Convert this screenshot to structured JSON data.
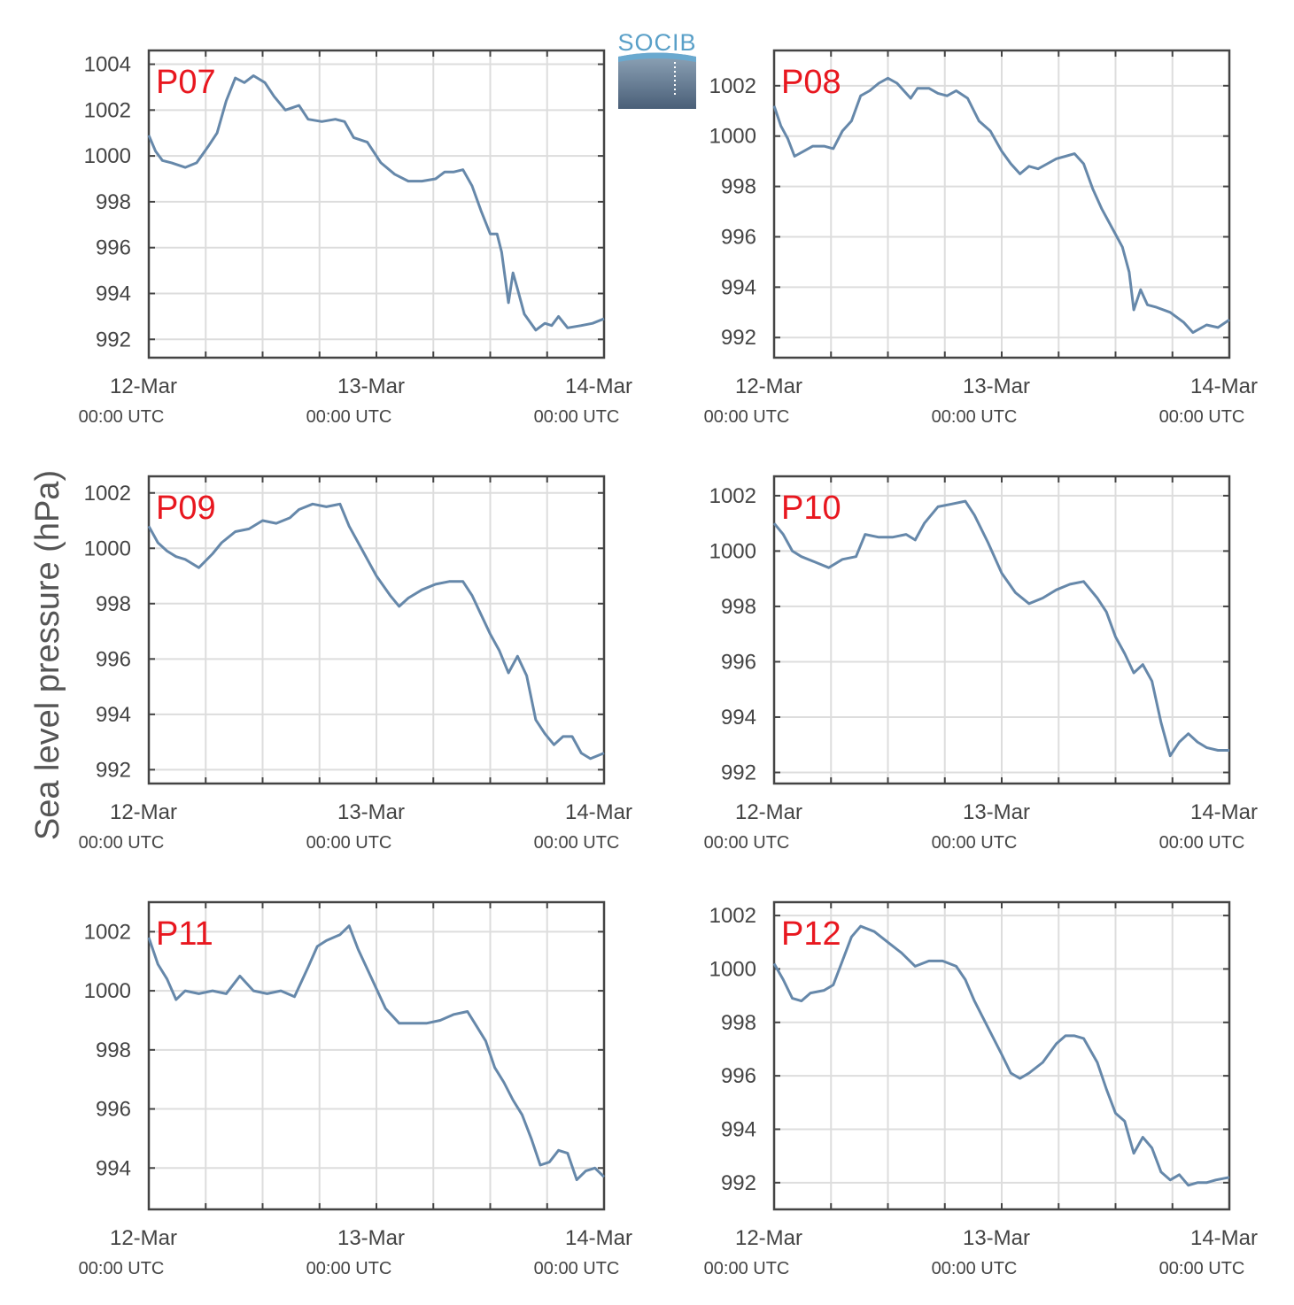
{
  "logo": {
    "text": "SOCIB"
  },
  "ylabel": "Sea level pressure (hPa)",
  "line_color": "#6688aa",
  "label_color": "#e8171f",
  "chart_data": [
    {
      "type": "line",
      "label": "P07",
      "xlim": [
        0,
        2
      ],
      "ylim": [
        991.2,
        1004.6
      ],
      "yticks": [
        992,
        994,
        996,
        998,
        1000,
        1002,
        1004
      ],
      "x_ticks": [
        {
          "top": "12-Mar",
          "bottom": "00:00 UTC"
        },
        {
          "top": "13-Mar",
          "bottom": "00:00 UTC"
        },
        {
          "top": "14-Mar",
          "bottom": "00:00 UTC"
        }
      ],
      "points": [
        [
          0,
          1000.9
        ],
        [
          0.03,
          1000.2
        ],
        [
          0.06,
          999.8
        ],
        [
          0.1,
          999.7
        ],
        [
          0.16,
          999.5
        ],
        [
          0.21,
          999.7
        ],
        [
          0.26,
          1000.4
        ],
        [
          0.3,
          1001.0
        ],
        [
          0.34,
          1002.4
        ],
        [
          0.38,
          1003.4
        ],
        [
          0.42,
          1003.2
        ],
        [
          0.46,
          1003.5
        ],
        [
          0.51,
          1003.2
        ],
        [
          0.55,
          1002.6
        ],
        [
          0.6,
          1002.0
        ],
        [
          0.66,
          1002.2
        ],
        [
          0.7,
          1001.6
        ],
        [
          0.76,
          1001.5
        ],
        [
          0.82,
          1001.6
        ],
        [
          0.86,
          1001.5
        ],
        [
          0.9,
          1000.8
        ],
        [
          0.96,
          1000.6
        ],
        [
          1.02,
          999.7
        ],
        [
          1.08,
          999.2
        ],
        [
          1.14,
          998.9
        ],
        [
          1.2,
          998.9
        ],
        [
          1.26,
          999.0
        ],
        [
          1.3,
          999.3
        ],
        [
          1.34,
          999.3
        ],
        [
          1.38,
          999.4
        ],
        [
          1.42,
          998.7
        ],
        [
          1.46,
          997.6
        ],
        [
          1.5,
          996.6
        ],
        [
          1.53,
          996.6
        ],
        [
          1.55,
          995.8
        ],
        [
          1.58,
          993.6
        ],
        [
          1.6,
          994.9
        ],
        [
          1.62,
          994.2
        ],
        [
          1.65,
          993.1
        ],
        [
          1.7,
          992.4
        ],
        [
          1.74,
          992.7
        ],
        [
          1.77,
          992.6
        ],
        [
          1.8,
          993.0
        ],
        [
          1.84,
          992.5
        ],
        [
          1.9,
          992.6
        ],
        [
          1.95,
          992.7
        ],
        [
          2,
          992.9
        ]
      ]
    },
    {
      "type": "line",
      "label": "P08",
      "xlim": [
        0,
        2
      ],
      "ylim": [
        991.2,
        1003.4
      ],
      "yticks": [
        992,
        994,
        996,
        998,
        1000,
        1002
      ],
      "x_ticks": [
        {
          "top": "12-Mar",
          "bottom": "00:00 UTC"
        },
        {
          "top": "13-Mar",
          "bottom": "00:00 UTC"
        },
        {
          "top": "14-Mar",
          "bottom": "00:00 UTC"
        }
      ],
      "points": [
        [
          0,
          1001.2
        ],
        [
          0.03,
          1000.4
        ],
        [
          0.06,
          999.9
        ],
        [
          0.09,
          999.2
        ],
        [
          0.13,
          999.4
        ],
        [
          0.17,
          999.6
        ],
        [
          0.22,
          999.6
        ],
        [
          0.26,
          999.5
        ],
        [
          0.3,
          1000.2
        ],
        [
          0.34,
          1000.6
        ],
        [
          0.38,
          1001.6
        ],
        [
          0.42,
          1001.8
        ],
        [
          0.46,
          1002.1
        ],
        [
          0.5,
          1002.3
        ],
        [
          0.54,
          1002.1
        ],
        [
          0.57,
          1001.8
        ],
        [
          0.6,
          1001.5
        ],
        [
          0.63,
          1001.9
        ],
        [
          0.68,
          1001.9
        ],
        [
          0.72,
          1001.7
        ],
        [
          0.76,
          1001.6
        ],
        [
          0.8,
          1001.8
        ],
        [
          0.85,
          1001.5
        ],
        [
          0.9,
          1000.6
        ],
        [
          0.95,
          1000.2
        ],
        [
          1.0,
          999.4
        ],
        [
          1.04,
          998.9
        ],
        [
          1.08,
          998.5
        ],
        [
          1.12,
          998.8
        ],
        [
          1.16,
          998.7
        ],
        [
          1.2,
          998.9
        ],
        [
          1.24,
          999.1
        ],
        [
          1.28,
          999.2
        ],
        [
          1.32,
          999.3
        ],
        [
          1.36,
          998.9
        ],
        [
          1.4,
          997.9
        ],
        [
          1.44,
          997.1
        ],
        [
          1.47,
          996.6
        ],
        [
          1.5,
          996.1
        ],
        [
          1.53,
          995.6
        ],
        [
          1.56,
          994.6
        ],
        [
          1.58,
          993.1
        ],
        [
          1.61,
          993.9
        ],
        [
          1.64,
          993.3
        ],
        [
          1.68,
          993.2
        ],
        [
          1.74,
          993.0
        ],
        [
          1.8,
          992.6
        ],
        [
          1.84,
          992.2
        ],
        [
          1.9,
          992.5
        ],
        [
          1.95,
          992.4
        ],
        [
          2,
          992.7
        ]
      ]
    },
    {
      "type": "line",
      "label": "P09",
      "xlim": [
        0,
        2
      ],
      "ylim": [
        991.5,
        1002.6
      ],
      "yticks": [
        992,
        994,
        996,
        998,
        1000,
        1002
      ],
      "x_ticks": [
        {
          "top": "12-Mar",
          "bottom": "00:00 UTC"
        },
        {
          "top": "13-Mar",
          "bottom": "00:00 UTC"
        },
        {
          "top": "14-Mar",
          "bottom": "00:00 UTC"
        }
      ],
      "points": [
        [
          0,
          1000.8
        ],
        [
          0.04,
          1000.2
        ],
        [
          0.08,
          999.9
        ],
        [
          0.12,
          999.7
        ],
        [
          0.16,
          999.6
        ],
        [
          0.22,
          999.3
        ],
        [
          0.28,
          999.8
        ],
        [
          0.32,
          1000.2
        ],
        [
          0.38,
          1000.6
        ],
        [
          0.44,
          1000.7
        ],
        [
          0.5,
          1001.0
        ],
        [
          0.56,
          1000.9
        ],
        [
          0.62,
          1001.1
        ],
        [
          0.66,
          1001.4
        ],
        [
          0.72,
          1001.6
        ],
        [
          0.78,
          1001.5
        ],
        [
          0.84,
          1001.6
        ],
        [
          0.88,
          1000.8
        ],
        [
          0.94,
          999.9
        ],
        [
          1.0,
          999.0
        ],
        [
          1.06,
          998.3
        ],
        [
          1.1,
          997.9
        ],
        [
          1.14,
          998.2
        ],
        [
          1.2,
          998.5
        ],
        [
          1.26,
          998.7
        ],
        [
          1.32,
          998.8
        ],
        [
          1.38,
          998.8
        ],
        [
          1.42,
          998.3
        ],
        [
          1.46,
          997.6
        ],
        [
          1.5,
          996.9
        ],
        [
          1.54,
          996.3
        ],
        [
          1.58,
          995.5
        ],
        [
          1.62,
          996.1
        ],
        [
          1.66,
          995.4
        ],
        [
          1.7,
          993.8
        ],
        [
          1.74,
          993.3
        ],
        [
          1.78,
          992.9
        ],
        [
          1.82,
          993.2
        ],
        [
          1.86,
          993.2
        ],
        [
          1.9,
          992.6
        ],
        [
          1.94,
          992.4
        ],
        [
          2,
          992.6
        ]
      ]
    },
    {
      "type": "line",
      "label": "P10",
      "xlim": [
        0,
        2
      ],
      "ylim": [
        991.6,
        1002.7
      ],
      "yticks": [
        992,
        994,
        996,
        998,
        1000,
        1002
      ],
      "x_ticks": [
        {
          "top": "12-Mar",
          "bottom": "00:00 UTC"
        },
        {
          "top": "13-Mar",
          "bottom": "00:00 UTC"
        },
        {
          "top": "14-Mar",
          "bottom": "00:00 UTC"
        }
      ],
      "points": [
        [
          0,
          1001.0
        ],
        [
          0.04,
          1000.6
        ],
        [
          0.08,
          1000.0
        ],
        [
          0.12,
          999.8
        ],
        [
          0.18,
          999.6
        ],
        [
          0.24,
          999.4
        ],
        [
          0.3,
          999.7
        ],
        [
          0.36,
          999.8
        ],
        [
          0.4,
          1000.6
        ],
        [
          0.46,
          1000.5
        ],
        [
          0.52,
          1000.5
        ],
        [
          0.58,
          1000.6
        ],
        [
          0.62,
          1000.4
        ],
        [
          0.66,
          1001.0
        ],
        [
          0.72,
          1001.6
        ],
        [
          0.78,
          1001.7
        ],
        [
          0.84,
          1001.8
        ],
        [
          0.88,
          1001.3
        ],
        [
          0.94,
          1000.3
        ],
        [
          1.0,
          999.2
        ],
        [
          1.06,
          998.5
        ],
        [
          1.12,
          998.1
        ],
        [
          1.18,
          998.3
        ],
        [
          1.24,
          998.6
        ],
        [
          1.3,
          998.8
        ],
        [
          1.36,
          998.9
        ],
        [
          1.42,
          998.3
        ],
        [
          1.46,
          997.8
        ],
        [
          1.5,
          996.9
        ],
        [
          1.54,
          996.3
        ],
        [
          1.58,
          995.6
        ],
        [
          1.62,
          995.9
        ],
        [
          1.66,
          995.3
        ],
        [
          1.7,
          993.8
        ],
        [
          1.74,
          992.6
        ],
        [
          1.78,
          993.1
        ],
        [
          1.82,
          993.4
        ],
        [
          1.86,
          993.1
        ],
        [
          1.9,
          992.9
        ],
        [
          1.95,
          992.8
        ],
        [
          2,
          992.8
        ]
      ]
    },
    {
      "type": "line",
      "label": "P11",
      "xlim": [
        0,
        2
      ],
      "ylim": [
        992.6,
        1003.0
      ],
      "yticks": [
        994,
        996,
        998,
        1000,
        1002
      ],
      "x_ticks": [
        {
          "top": "12-Mar",
          "bottom": "00:00 UTC"
        },
        {
          "top": "13-Mar",
          "bottom": "00:00 UTC"
        },
        {
          "top": "14-Mar",
          "bottom": "00:00 UTC"
        }
      ],
      "points": [
        [
          0,
          1001.8
        ],
        [
          0.04,
          1000.9
        ],
        [
          0.08,
          1000.4
        ],
        [
          0.12,
          999.7
        ],
        [
          0.16,
          1000.0
        ],
        [
          0.22,
          999.9
        ],
        [
          0.28,
          1000.0
        ],
        [
          0.34,
          999.9
        ],
        [
          0.4,
          1000.5
        ],
        [
          0.46,
          1000.0
        ],
        [
          0.52,
          999.9
        ],
        [
          0.58,
          1000.0
        ],
        [
          0.64,
          999.8
        ],
        [
          0.7,
          1000.8
        ],
        [
          0.74,
          1001.5
        ],
        [
          0.78,
          1001.7
        ],
        [
          0.84,
          1001.9
        ],
        [
          0.88,
          1002.2
        ],
        [
          0.92,
          1001.4
        ],
        [
          0.98,
          1000.4
        ],
        [
          1.04,
          999.4
        ],
        [
          1.1,
          998.9
        ],
        [
          1.16,
          998.9
        ],
        [
          1.22,
          998.9
        ],
        [
          1.28,
          999.0
        ],
        [
          1.34,
          999.2
        ],
        [
          1.4,
          999.3
        ],
        [
          1.44,
          998.8
        ],
        [
          1.48,
          998.3
        ],
        [
          1.52,
          997.4
        ],
        [
          1.56,
          996.9
        ],
        [
          1.6,
          996.3
        ],
        [
          1.64,
          995.8
        ],
        [
          1.68,
          995.0
        ],
        [
          1.72,
          994.1
        ],
        [
          1.76,
          994.2
        ],
        [
          1.8,
          994.6
        ],
        [
          1.84,
          994.5
        ],
        [
          1.88,
          993.6
        ],
        [
          1.92,
          993.9
        ],
        [
          1.96,
          994.0
        ],
        [
          2,
          993.7
        ]
      ]
    },
    {
      "type": "line",
      "label": "P12",
      "xlim": [
        0,
        2
      ],
      "ylim": [
        991.0,
        1002.5
      ],
      "yticks": [
        992,
        994,
        996,
        998,
        1000,
        1002
      ],
      "x_ticks": [
        {
          "top": "12-Mar",
          "bottom": "00:00 UTC"
        },
        {
          "top": "13-Mar",
          "bottom": "00:00 UTC"
        },
        {
          "top": "14-Mar",
          "bottom": "00:00 UTC"
        }
      ],
      "points": [
        [
          0,
          1000.2
        ],
        [
          0.04,
          999.6
        ],
        [
          0.08,
          998.9
        ],
        [
          0.12,
          998.8
        ],
        [
          0.16,
          999.1
        ],
        [
          0.22,
          999.2
        ],
        [
          0.26,
          999.4
        ],
        [
          0.3,
          1000.3
        ],
        [
          0.34,
          1001.2
        ],
        [
          0.38,
          1001.6
        ],
        [
          0.44,
          1001.4
        ],
        [
          0.5,
          1001.0
        ],
        [
          0.56,
          1000.6
        ],
        [
          0.62,
          1000.1
        ],
        [
          0.68,
          1000.3
        ],
        [
          0.74,
          1000.3
        ],
        [
          0.8,
          1000.1
        ],
        [
          0.84,
          999.6
        ],
        [
          0.88,
          998.8
        ],
        [
          0.94,
          997.8
        ],
        [
          1.0,
          996.8
        ],
        [
          1.04,
          996.1
        ],
        [
          1.08,
          995.9
        ],
        [
          1.12,
          996.1
        ],
        [
          1.18,
          996.5
        ],
        [
          1.24,
          997.2
        ],
        [
          1.28,
          997.5
        ],
        [
          1.32,
          997.5
        ],
        [
          1.36,
          997.4
        ],
        [
          1.42,
          996.5
        ],
        [
          1.46,
          995.5
        ],
        [
          1.5,
          994.6
        ],
        [
          1.54,
          994.3
        ],
        [
          1.58,
          993.1
        ],
        [
          1.62,
          993.7
        ],
        [
          1.66,
          993.3
        ],
        [
          1.7,
          992.4
        ],
        [
          1.74,
          992.1
        ],
        [
          1.78,
          992.3
        ],
        [
          1.82,
          991.9
        ],
        [
          1.86,
          992.0
        ],
        [
          1.9,
          992.0
        ],
        [
          1.94,
          992.1
        ],
        [
          2,
          992.2
        ]
      ]
    }
  ]
}
